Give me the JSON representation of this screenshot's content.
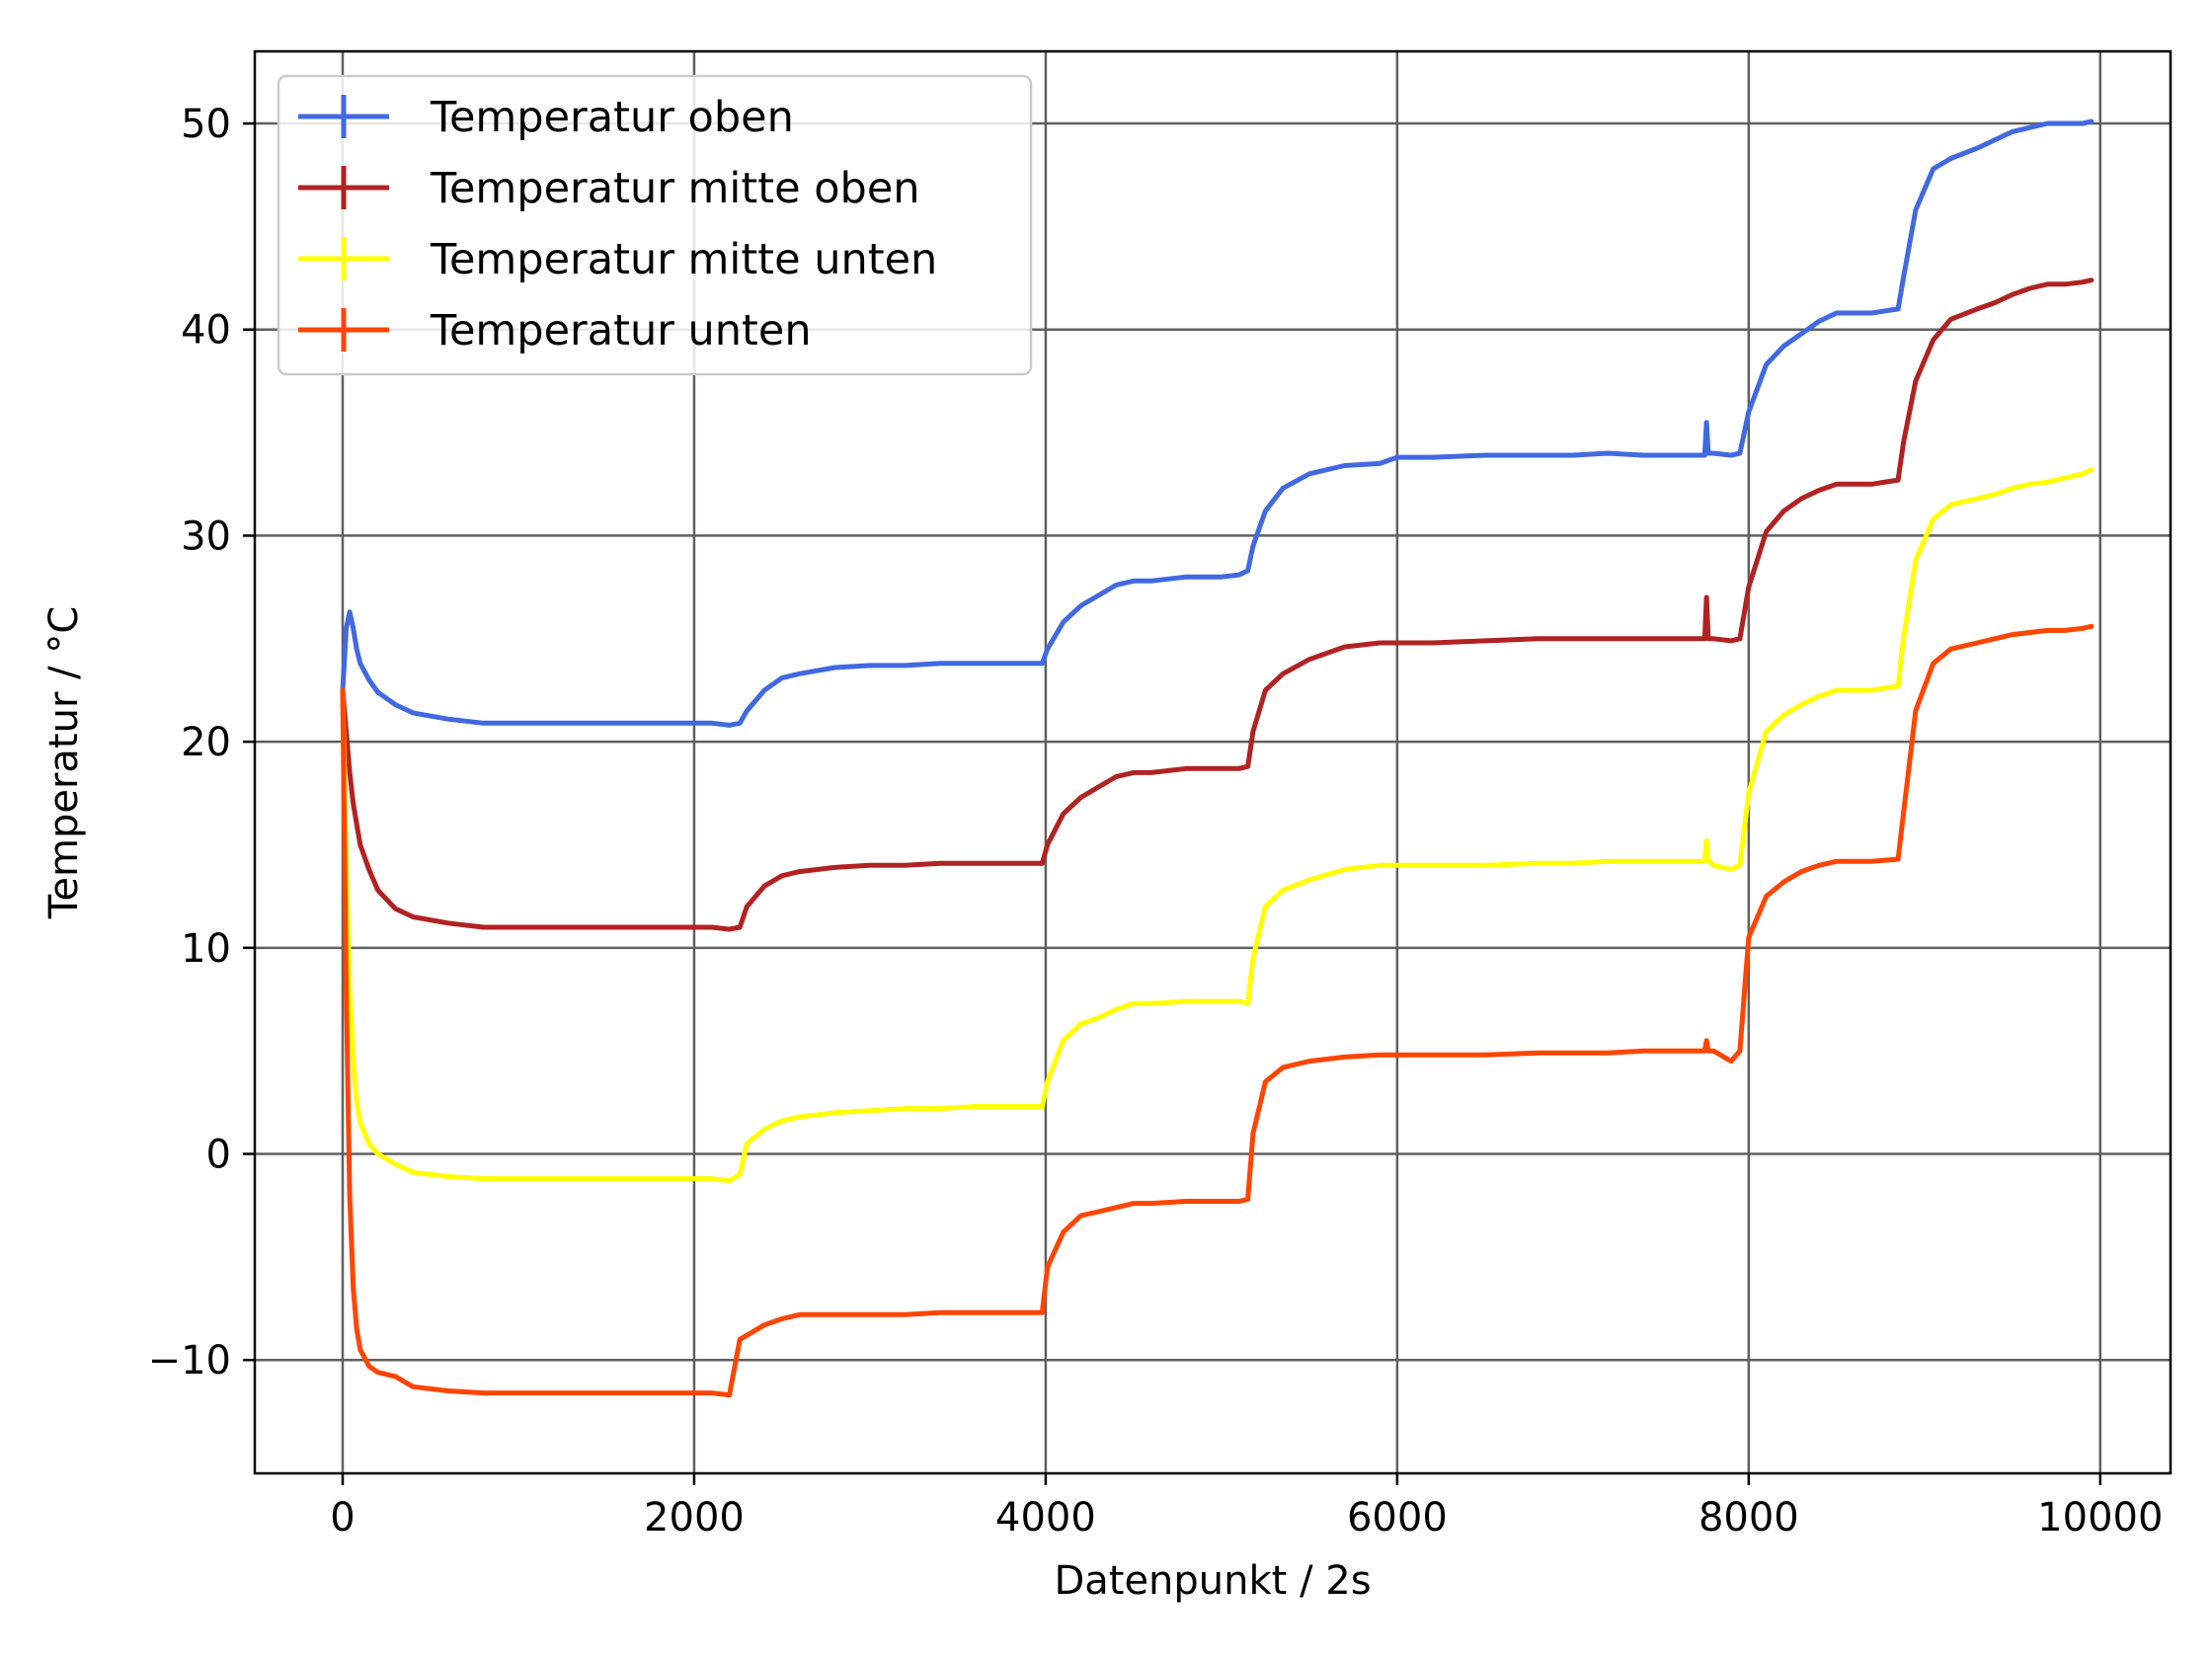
{
  "chart_data": {
    "type": "line",
    "title": "",
    "xlabel": "Datenpunkt / 2s",
    "ylabel": "Temperatur / °C",
    "xlim": [
      -500,
      10400
    ],
    "ylim": [
      -15.5,
      53.5
    ],
    "xticks": [
      0,
      2000,
      4000,
      6000,
      8000,
      10000
    ],
    "xtick_labels": [
      "0",
      "2000",
      "4000",
      "6000",
      "8000",
      "10000"
    ],
    "yticks": [
      -10,
      0,
      10,
      20,
      30,
      40,
      50
    ],
    "ytick_labels": [
      "−10",
      "0",
      "10",
      "20",
      "30",
      "40",
      "50"
    ],
    "grid": true,
    "legend_position": "top-left",
    "series": [
      {
        "name": "Temperatur oben",
        "color": "#4169e1",
        "x": [
          0,
          20,
          40,
          60,
          80,
          100,
          150,
          200,
          300,
          400,
          600,
          800,
          1000,
          1200,
          1400,
          1600,
          1800,
          2000,
          2100,
          2200,
          2260,
          2300,
          2400,
          2500,
          2600,
          2800,
          3000,
          3200,
          3400,
          3600,
          3800,
          3980,
          4010,
          4100,
          4200,
          4300,
          4400,
          4500,
          4600,
          4800,
          5000,
          5100,
          5150,
          5180,
          5250,
          5350,
          5500,
          5700,
          5900,
          6000,
          6200,
          6500,
          6800,
          7000,
          7200,
          7400,
          7600,
          7750,
          7760,
          7770,
          7800,
          7900,
          7950,
          8000,
          8100,
          8200,
          8300,
          8400,
          8500,
          8600,
          8700,
          8850,
          8880,
          8950,
          9050,
          9150,
          9300,
          9400,
          9500,
          9600,
          9700,
          9800,
          9900,
          9950
        ],
        "y": [
          22.5,
          25.5,
          26.3,
          25.5,
          24.5,
          23.8,
          23.0,
          22.4,
          21.8,
          21.4,
          21.1,
          20.9,
          20.9,
          20.9,
          20.9,
          20.9,
          20.9,
          20.9,
          20.9,
          20.8,
          20.9,
          21.5,
          22.5,
          23.1,
          23.3,
          23.6,
          23.7,
          23.7,
          23.8,
          23.8,
          23.8,
          23.8,
          24.5,
          25.8,
          26.6,
          27.1,
          27.6,
          27.8,
          27.8,
          28.0,
          28.0,
          28.1,
          28.3,
          29.5,
          31.2,
          32.3,
          33.0,
          33.4,
          33.5,
          33.8,
          33.8,
          33.9,
          33.9,
          33.9,
          34.0,
          33.9,
          33.9,
          33.9,
          35.5,
          34.0,
          34.0,
          33.9,
          34.0,
          36.0,
          38.3,
          39.2,
          39.8,
          40.4,
          40.8,
          40.8,
          40.8,
          41.0,
          42.5,
          45.8,
          47.8,
          48.3,
          48.8,
          49.2,
          49.6,
          49.8,
          50.0,
          50.0,
          50.0,
          50.1
        ]
      },
      {
        "name": "Temperatur mitte oben",
        "color": "#b22222",
        "x": [
          0,
          20,
          40,
          60,
          80,
          100,
          150,
          200,
          300,
          400,
          600,
          800,
          1000,
          1200,
          1400,
          1600,
          1800,
          2000,
          2100,
          2200,
          2260,
          2300,
          2400,
          2500,
          2600,
          2800,
          3000,
          3200,
          3400,
          3600,
          3800,
          3980,
          4010,
          4100,
          4200,
          4300,
          4400,
          4500,
          4600,
          4800,
          5000,
          5100,
          5150,
          5180,
          5250,
          5350,
          5500,
          5700,
          5900,
          6000,
          6200,
          6500,
          6800,
          7000,
          7200,
          7400,
          7600,
          7750,
          7760,
          7770,
          7800,
          7900,
          7950,
          8000,
          8100,
          8200,
          8300,
          8400,
          8500,
          8600,
          8700,
          8850,
          8880,
          8950,
          9050,
          9150,
          9300,
          9400,
          9500,
          9600,
          9700,
          9800,
          9900,
          9950
        ],
        "y": [
          22.5,
          20.5,
          18.5,
          17.0,
          16.0,
          15.0,
          13.8,
          12.8,
          11.9,
          11.5,
          11.2,
          11.0,
          11.0,
          11.0,
          11.0,
          11.0,
          11.0,
          11.0,
          11.0,
          10.9,
          11.0,
          12.0,
          13.0,
          13.5,
          13.7,
          13.9,
          14.0,
          14.0,
          14.1,
          14.1,
          14.1,
          14.1,
          15.0,
          16.5,
          17.3,
          17.8,
          18.3,
          18.5,
          18.5,
          18.7,
          18.7,
          18.7,
          18.8,
          20.5,
          22.5,
          23.3,
          24.0,
          24.6,
          24.8,
          24.8,
          24.8,
          24.9,
          25.0,
          25.0,
          25.0,
          25.0,
          25.0,
          25.0,
          27.0,
          25.0,
          25.0,
          24.9,
          25.0,
          27.5,
          30.2,
          31.2,
          31.8,
          32.2,
          32.5,
          32.5,
          32.5,
          32.7,
          34.5,
          37.5,
          39.5,
          40.5,
          41.0,
          41.3,
          41.7,
          42.0,
          42.2,
          42.2,
          42.3,
          42.4
        ]
      },
      {
        "name": "Temperatur mitte unten",
        "color": "#ffff00",
        "x": [
          0,
          20,
          40,
          60,
          80,
          100,
          150,
          200,
          300,
          400,
          600,
          800,
          1000,
          1200,
          1400,
          1600,
          1800,
          2000,
          2100,
          2200,
          2260,
          2300,
          2400,
          2500,
          2600,
          2800,
          3000,
          3200,
          3400,
          3600,
          3800,
          3980,
          4010,
          4100,
          4200,
          4300,
          4400,
          4500,
          4600,
          4800,
          5000,
          5100,
          5150,
          5180,
          5250,
          5350,
          5500,
          5700,
          5900,
          6000,
          6200,
          6500,
          6800,
          7000,
          7200,
          7400,
          7600,
          7750,
          7760,
          7770,
          7800,
          7900,
          7950,
          8000,
          8100,
          8200,
          8300,
          8400,
          8500,
          8600,
          8700,
          8850,
          8880,
          8950,
          9050,
          9150,
          9300,
          9400,
          9500,
          9600,
          9700,
          9800,
          9900,
          9950
        ],
        "y": [
          22.5,
          14.0,
          8.0,
          4.5,
          2.5,
          1.5,
          0.5,
          0.0,
          -0.5,
          -0.9,
          -1.1,
          -1.2,
          -1.2,
          -1.2,
          -1.2,
          -1.2,
          -1.2,
          -1.2,
          -1.2,
          -1.3,
          -1.0,
          0.5,
          1.2,
          1.6,
          1.8,
          2.0,
          2.1,
          2.2,
          2.2,
          2.3,
          2.3,
          2.3,
          3.5,
          5.5,
          6.3,
          6.6,
          7.0,
          7.3,
          7.3,
          7.4,
          7.4,
          7.4,
          7.3,
          9.5,
          12.0,
          12.8,
          13.3,
          13.8,
          14.0,
          14.0,
          14.0,
          14.0,
          14.1,
          14.1,
          14.2,
          14.2,
          14.2,
          14.2,
          15.2,
          14.2,
          14.0,
          13.8,
          14.0,
          17.5,
          20.5,
          21.3,
          21.8,
          22.2,
          22.5,
          22.5,
          22.5,
          22.7,
          25.0,
          28.8,
          30.8,
          31.5,
          31.8,
          32.0,
          32.3,
          32.5,
          32.6,
          32.8,
          33.0,
          33.2
        ]
      },
      {
        "name": "Temperatur unten",
        "color": "#ff4500",
        "x": [
          0,
          20,
          40,
          60,
          80,
          100,
          150,
          200,
          300,
          400,
          600,
          800,
          1000,
          1200,
          1400,
          1600,
          1800,
          2000,
          2100,
          2200,
          2260,
          2300,
          2400,
          2500,
          2600,
          2800,
          3000,
          3200,
          3400,
          3600,
          3800,
          3980,
          4010,
          4100,
          4200,
          4300,
          4400,
          4500,
          4600,
          4800,
          5000,
          5100,
          5150,
          5180,
          5250,
          5350,
          5500,
          5700,
          5900,
          6000,
          6200,
          6500,
          6800,
          7000,
          7200,
          7400,
          7600,
          7750,
          7760,
          7770,
          7800,
          7900,
          7950,
          8000,
          8100,
          8200,
          8300,
          8400,
          8500,
          8600,
          8700,
          8850,
          8880,
          8950,
          9050,
          9150,
          9300,
          9400,
          9500,
          9600,
          9700,
          9800,
          9900,
          9950
        ],
        "y": [
          22.5,
          8.0,
          -2.0,
          -6.5,
          -8.5,
          -9.5,
          -10.3,
          -10.6,
          -10.8,
          -11.3,
          -11.5,
          -11.6,
          -11.6,
          -11.6,
          -11.6,
          -11.6,
          -11.6,
          -11.6,
          -11.6,
          -11.7,
          -9.0,
          -8.8,
          -8.3,
          -8.0,
          -7.8,
          -7.8,
          -7.8,
          -7.8,
          -7.7,
          -7.7,
          -7.7,
          -7.7,
          -5.5,
          -3.8,
          -3.0,
          -2.8,
          -2.6,
          -2.4,
          -2.4,
          -2.3,
          -2.3,
          -2.3,
          -2.2,
          1.0,
          3.5,
          4.2,
          4.5,
          4.7,
          4.8,
          4.8,
          4.8,
          4.8,
          4.9,
          4.9,
          4.9,
          5.0,
          5.0,
          5.0,
          5.5,
          5.0,
          5.0,
          4.5,
          5.0,
          10.5,
          12.5,
          13.2,
          13.7,
          14.0,
          14.2,
          14.2,
          14.2,
          14.3,
          16.5,
          21.5,
          23.8,
          24.5,
          24.8,
          25.0,
          25.2,
          25.3,
          25.4,
          25.4,
          25.5,
          25.6
        ]
      }
    ]
  }
}
